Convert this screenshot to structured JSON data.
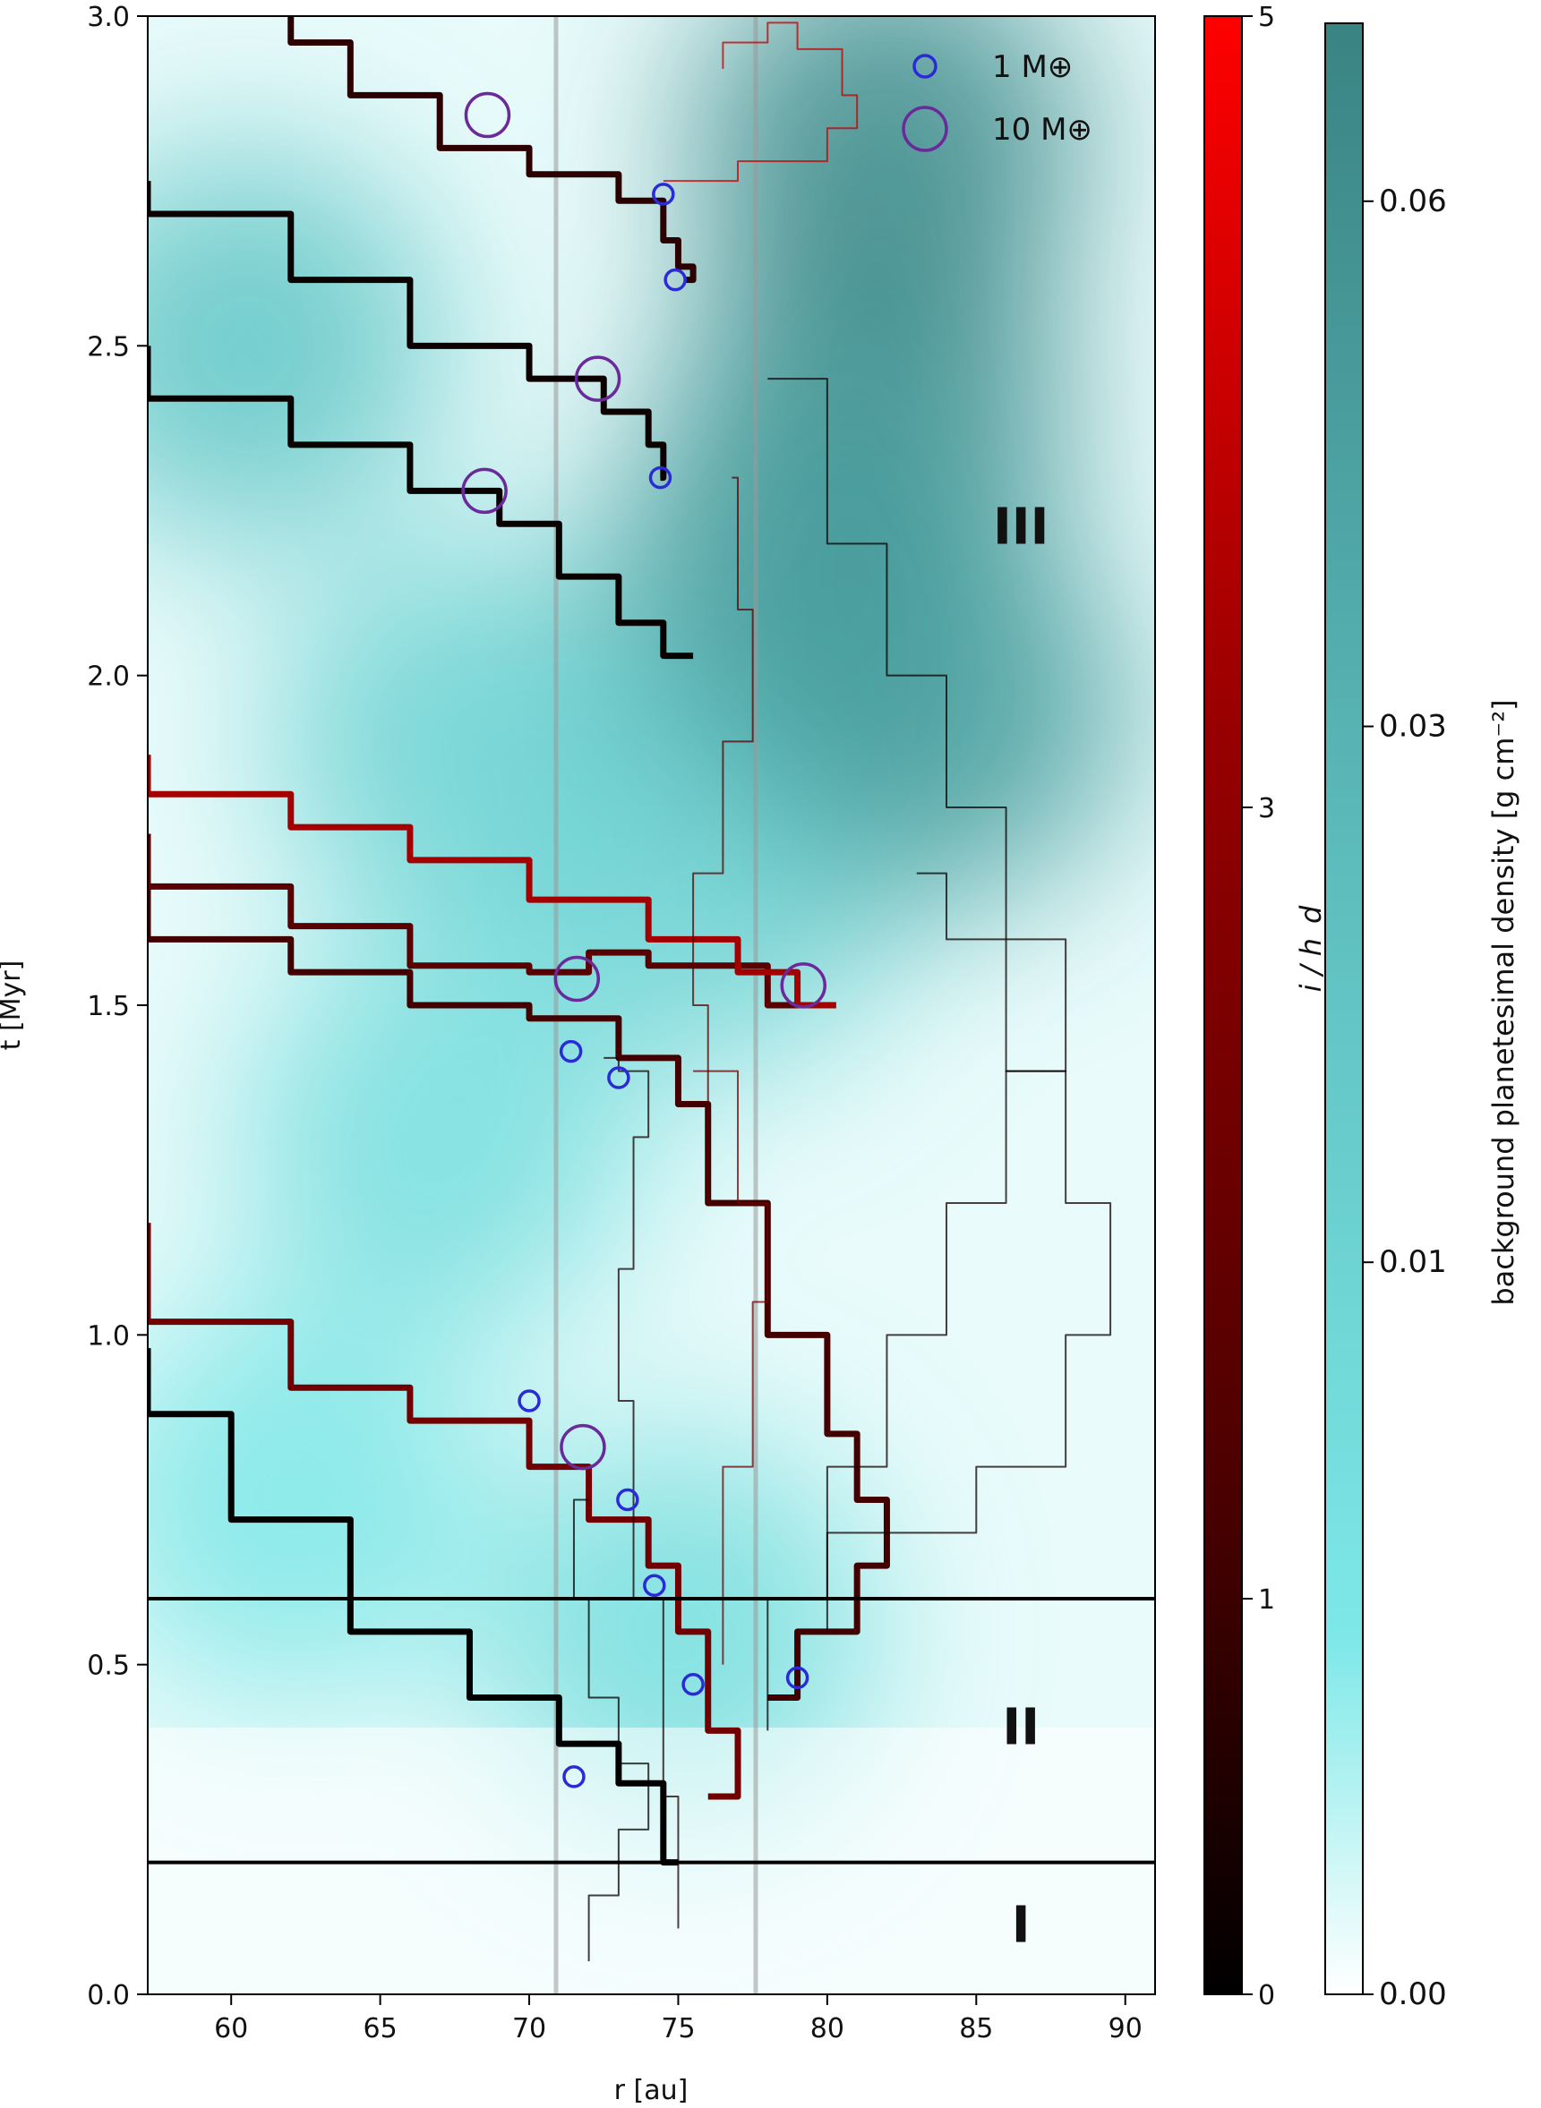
{
  "chart_data": {
    "type": "line",
    "title": "",
    "xlabel": "r [au]",
    "ylabel": "t [Myr]",
    "xlim": [
      57.2,
      91.0
    ],
    "ylim": [
      0.0,
      3.0
    ],
    "x_ticks": [
      "60",
      "65",
      "70",
      "75",
      "80",
      "85",
      "90"
    ],
    "y_ticks": [
      "0.0",
      "0.5",
      "1.0",
      "1.5",
      "2.0",
      "2.5",
      "3.0"
    ],
    "x_tick_values": [
      60,
      65,
      70,
      75,
      80,
      85,
      90
    ],
    "y_tick_values": [
      0.0,
      0.5,
      1.0,
      1.5,
      2.0,
      2.5,
      3.0
    ],
    "vertical_lines_r": [
      70.9,
      77.6
    ],
    "phase_boundaries_t": [
      0.2,
      0.6
    ],
    "phase_labels": [
      {
        "text": "I",
        "r": 86.5,
        "t": 0.1
      },
      {
        "text": "II",
        "r": 86.5,
        "t": 0.4
      },
      {
        "text": "III",
        "r": 86.5,
        "t": 2.22
      }
    ],
    "legend": {
      "position": "top-right",
      "entries": [
        {
          "label": "1 M⊕",
          "size": 1,
          "color": "#2b2bd6"
        },
        {
          "label": "10 M⊕",
          "size": 10,
          "color": "#6a2a9a"
        }
      ]
    },
    "colorbar_inclination": {
      "label": "i / h_d",
      "ticks": [
        "0",
        "1",
        "3",
        "5"
      ],
      "tick_values": [
        0,
        1,
        3,
        5
      ],
      "colors": [
        "#000000",
        "#4a0000",
        "#9a0000",
        "#ff0000"
      ]
    },
    "colorbar_density": {
      "label": "background planetesimal density [g cm⁻²]",
      "ticks": [
        "0.00",
        "0.01",
        "0.03",
        "0.06"
      ],
      "tick_values": [
        0.0,
        0.01,
        0.03,
        0.06
      ],
      "colors": [
        "#ffffff",
        "#7ee8e8",
        "#4fb0b0",
        "#3a8383"
      ]
    },
    "series": [
      {
        "points": [
          [
            57.2,
            0.98
          ],
          [
            60,
            0.88
          ],
          [
            64,
            0.72
          ],
          [
            68,
            0.55
          ],
          [
            71,
            0.45
          ],
          [
            73,
            0.38
          ],
          [
            74.5,
            0.32
          ],
          [
            75,
            0.2
          ]
        ],
        "weight": "thick",
        "i_over_hd": 0.0
      },
      {
        "points": [
          [
            57.2,
            1.17
          ],
          [
            62,
            1.02
          ],
          [
            66,
            0.92
          ],
          [
            70,
            0.87
          ],
          [
            72,
            0.8
          ],
          [
            74,
            0.72
          ],
          [
            75,
            0.65
          ],
          [
            76,
            0.55
          ],
          [
            77,
            0.4
          ],
          [
            76,
            0.3
          ]
        ],
        "weight": "thick",
        "i_over_hd": 2.5
      },
      {
        "points": [
          [
            57.2,
            1.68
          ],
          [
            62,
            1.6
          ],
          [
            66,
            1.55
          ],
          [
            70,
            1.5
          ],
          [
            73,
            1.48
          ],
          [
            75,
            1.42
          ],
          [
            76,
            1.35
          ],
          [
            78,
            1.2
          ],
          [
            80,
            1.0
          ],
          [
            81,
            0.85
          ],
          [
            82,
            0.75
          ],
          [
            81,
            0.65
          ],
          [
            79,
            0.55
          ],
          [
            78,
            0.45
          ]
        ],
        "weight": "thick",
        "i_over_hd": 1.5
      },
      {
        "points": [
          [
            57.2,
            1.76
          ],
          [
            62,
            1.68
          ],
          [
            66,
            1.62
          ],
          [
            70,
            1.56
          ],
          [
            72,
            1.55
          ],
          [
            74,
            1.58
          ],
          [
            78,
            1.56
          ],
          [
            80,
            1.5
          ]
        ],
        "weight": "thick",
        "i_over_hd": 2.0
      },
      {
        "points": [
          [
            57.2,
            1.88
          ],
          [
            62,
            1.82
          ],
          [
            66,
            1.77
          ],
          [
            70,
            1.72
          ],
          [
            74,
            1.66
          ],
          [
            77,
            1.6
          ],
          [
            79,
            1.55
          ],
          [
            80.3,
            1.5
          ]
        ],
        "weight": "thick",
        "i_over_hd": 3.5
      },
      {
        "points": [
          [
            57.2,
            2.5
          ],
          [
            62,
            2.42
          ],
          [
            66,
            2.35
          ],
          [
            69,
            2.28
          ],
          [
            71,
            2.23
          ],
          [
            73,
            2.15
          ],
          [
            74.5,
            2.08
          ],
          [
            75.5,
            2.03
          ]
        ],
        "weight": "thick",
        "i_over_hd": 0.2
      },
      {
        "points": [
          [
            57.2,
            2.75
          ],
          [
            62,
            2.7
          ],
          [
            66,
            2.6
          ],
          [
            70,
            2.5
          ],
          [
            72.5,
            2.45
          ],
          [
            74,
            2.4
          ],
          [
            74.5,
            2.35
          ],
          [
            74.4,
            2.3
          ]
        ],
        "weight": "thick",
        "i_over_hd": 0.3
      },
      {
        "points": [
          [
            62,
            3.0
          ],
          [
            64,
            2.96
          ],
          [
            67,
            2.88
          ],
          [
            70,
            2.8
          ],
          [
            73,
            2.76
          ],
          [
            74.5,
            2.72
          ],
          [
            75,
            2.66
          ],
          [
            75.5,
            2.62
          ],
          [
            75.2,
            2.6
          ]
        ],
        "weight": "thick",
        "i_over_hd": 1.0
      },
      {
        "points": [
          [
            75,
            0.1
          ],
          [
            74.5,
            0.3
          ],
          [
            73.5,
            0.6
          ],
          [
            73,
            0.9
          ],
          [
            73.5,
            1.1
          ],
          [
            74,
            1.3
          ],
          [
            73,
            1.4
          ],
          [
            72.5,
            1.42
          ]
        ],
        "weight": "thin",
        "i_over_hd": 0.5
      },
      {
        "points": [
          [
            78,
            0.4
          ],
          [
            80,
            0.6
          ],
          [
            82,
            0.8
          ],
          [
            84,
            1.0
          ],
          [
            86,
            1.2
          ],
          [
            88,
            1.4
          ],
          [
            86,
            1.6
          ],
          [
            84,
            1.8
          ],
          [
            82,
            2.0
          ],
          [
            80,
            2.2
          ],
          [
            78,
            2.45
          ]
        ],
        "weight": "thin",
        "i_over_hd": 0.3
      },
      {
        "points": [
          [
            76.5,
            0.5
          ],
          [
            77.5,
            0.8
          ],
          [
            78,
            1.05
          ],
          [
            77,
            1.2
          ],
          [
            75.5,
            1.4
          ]
        ],
        "weight": "thin",
        "i_over_hd": 2.5
      },
      {
        "points": [
          [
            76,
            1.2
          ],
          [
            75.5,
            1.5
          ],
          [
            76.5,
            1.7
          ],
          [
            77.5,
            1.9
          ],
          [
            77,
            2.1
          ],
          [
            76.8,
            2.3
          ]
        ],
        "weight": "thin",
        "i_over_hd": 2.0
      },
      {
        "points": [
          [
            80,
            0.55
          ],
          [
            85,
            0.7
          ],
          [
            88,
            0.8
          ],
          [
            89.5,
            1.0
          ],
          [
            88,
            1.2
          ],
          [
            86,
            1.4
          ],
          [
            84,
            1.6
          ],
          [
            83,
            1.7
          ]
        ],
        "weight": "thin",
        "i_over_hd": 0.3
      },
      {
        "points": [
          [
            72,
            0.05
          ],
          [
            73,
            0.15
          ],
          [
            74,
            0.25
          ],
          [
            73,
            0.35
          ],
          [
            72,
            0.45
          ],
          [
            71.5,
            0.6
          ],
          [
            72,
            0.75
          ]
        ],
        "weight": "thin",
        "i_over_hd": 0.0
      },
      {
        "points": [
          [
            76.5,
            2.92
          ],
          [
            78,
            2.96
          ],
          [
            79,
            2.99
          ],
          [
            80.5,
            2.95
          ],
          [
            81,
            2.88
          ],
          [
            80,
            2.83
          ],
          [
            77,
            2.78
          ],
          [
            74.5,
            2.75
          ]
        ],
        "weight": "thin",
        "i_over_hd": 4.0
      }
    ],
    "markers": [
      {
        "r": 71.5,
        "t": 0.33,
        "size": 1
      },
      {
        "r": 75.5,
        "t": 0.47,
        "size": 1
      },
      {
        "r": 79.0,
        "t": 0.48,
        "size": 1
      },
      {
        "r": 74.2,
        "t": 0.62,
        "size": 1
      },
      {
        "r": 73.3,
        "t": 0.75,
        "size": 1
      },
      {
        "r": 70.0,
        "t": 0.9,
        "size": 1
      },
      {
        "r": 71.8,
        "t": 0.83,
        "size": 10
      },
      {
        "r": 71.4,
        "t": 1.43,
        "size": 1
      },
      {
        "r": 73.0,
        "t": 1.39,
        "size": 1
      },
      {
        "r": 71.6,
        "t": 1.54,
        "size": 10
      },
      {
        "r": 79.2,
        "t": 1.53,
        "size": 10
      },
      {
        "r": 68.5,
        "t": 2.28,
        "size": 10
      },
      {
        "r": 74.4,
        "t": 2.3,
        "size": 1
      },
      {
        "r": 72.3,
        "t": 2.45,
        "size": 10
      },
      {
        "r": 74.9,
        "t": 2.6,
        "size": 1
      },
      {
        "r": 74.5,
        "t": 2.73,
        "size": 1
      },
      {
        "r": 68.6,
        "t": 2.85,
        "size": 10
      }
    ],
    "density_regions": [
      {
        "r": 60.5,
        "t": 2.5,
        "level": 0.025
      },
      {
        "r": 68.0,
        "t": 1.9,
        "level": 0.02
      },
      {
        "r": 76.0,
        "t": 1.7,
        "level": 0.02
      },
      {
        "r": 67.0,
        "t": 1.3,
        "level": 0.015
      },
      {
        "r": 75.0,
        "t": 0.55,
        "level": 0.015
      },
      {
        "r": 62.0,
        "t": 0.75,
        "level": 0.012
      },
      {
        "r": 81.5,
        "t": 2.4,
        "level": 0.06
      },
      {
        "r": 82.0,
        "t": 2.8,
        "level": 0.065
      },
      {
        "r": 79.0,
        "t": 2.15,
        "level": 0.05
      },
      {
        "r": 83.5,
        "t": 1.95,
        "level": 0.05
      }
    ]
  }
}
